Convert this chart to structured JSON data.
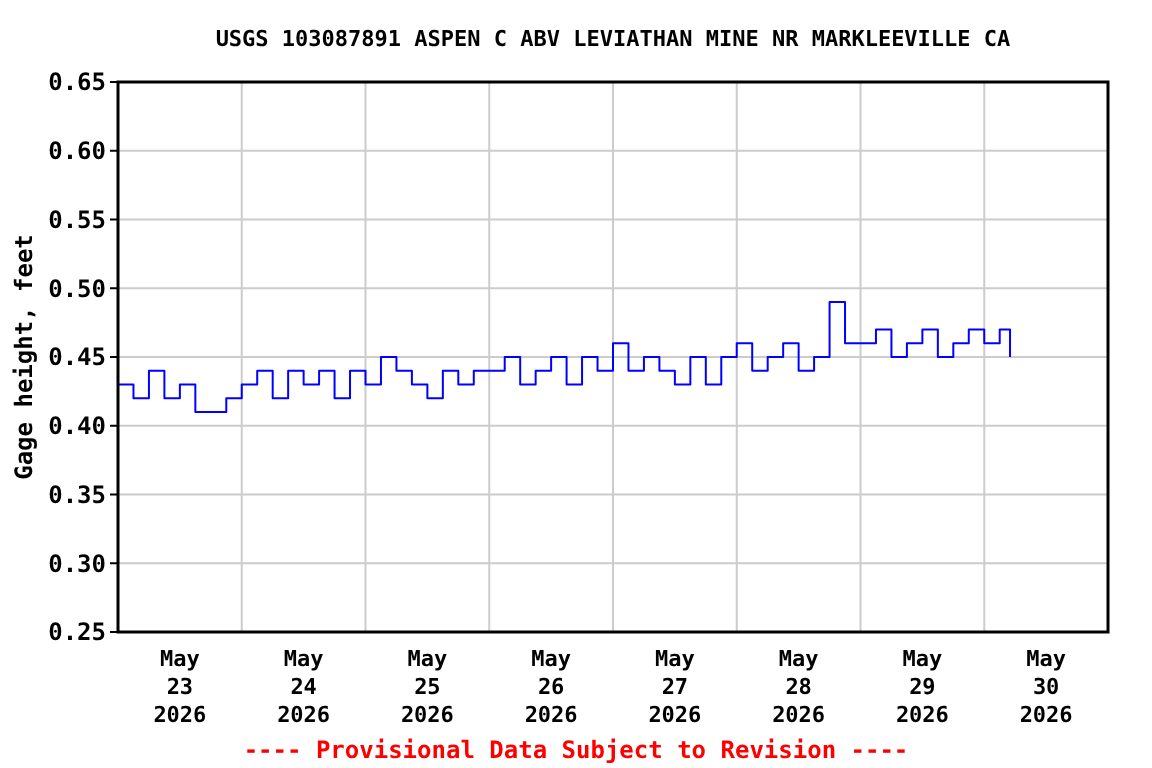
{
  "chart_data": {
    "type": "step",
    "title": "USGS 103087891 ASPEN C ABV LEVIATHAN MINE NR MARKLEEVILLE CA",
    "ylabel": "Gage height, feet",
    "annotations": [
      "---- Provisional Data Subject to Revision ----"
    ],
    "x": [
      "2026-05-23T00:00",
      "2026-05-23T03:00",
      "2026-05-23T06:00",
      "2026-05-23T09:00",
      "2026-05-23T12:00",
      "2026-05-23T15:00",
      "2026-05-23T18:00",
      "2026-05-23T21:00",
      "2026-05-24T00:00",
      "2026-05-24T03:00",
      "2026-05-24T06:00",
      "2026-05-24T09:00",
      "2026-05-24T12:00",
      "2026-05-24T15:00",
      "2026-05-24T18:00",
      "2026-05-24T21:00",
      "2026-05-25T00:00",
      "2026-05-25T03:00",
      "2026-05-25T06:00",
      "2026-05-25T09:00",
      "2026-05-25T12:00",
      "2026-05-25T15:00",
      "2026-05-25T18:00",
      "2026-05-25T21:00",
      "2026-05-26T00:00",
      "2026-05-26T03:00",
      "2026-05-26T06:00",
      "2026-05-26T09:00",
      "2026-05-26T12:00",
      "2026-05-26T15:00",
      "2026-05-26T18:00",
      "2026-05-26T21:00",
      "2026-05-27T00:00",
      "2026-05-27T03:00",
      "2026-05-27T06:00",
      "2026-05-27T09:00",
      "2026-05-27T12:00",
      "2026-05-27T15:00",
      "2026-05-27T18:00",
      "2026-05-27T21:00",
      "2026-05-28T00:00",
      "2026-05-28T03:00",
      "2026-05-28T06:00",
      "2026-05-28T09:00",
      "2026-05-28T12:00",
      "2026-05-28T15:00",
      "2026-05-28T18:00",
      "2026-05-28T21:00",
      "2026-05-29T00:00",
      "2026-05-29T03:00",
      "2026-05-29T06:00",
      "2026-05-29T09:00",
      "2026-05-29T12:00",
      "2026-05-29T15:00",
      "2026-05-29T18:00",
      "2026-05-29T21:00",
      "2026-05-30T00:00",
      "2026-05-30T03:00",
      "2026-05-30T05:00"
    ],
    "series": [
      {
        "color": "#0000ff",
        "values": [
          0.43,
          0.42,
          0.44,
          0.42,
          0.43,
          0.41,
          0.41,
          0.42,
          0.43,
          0.44,
          0.42,
          0.44,
          0.43,
          0.44,
          0.42,
          0.44,
          0.43,
          0.45,
          0.44,
          0.43,
          0.42,
          0.44,
          0.43,
          0.44,
          0.44,
          0.45,
          0.43,
          0.44,
          0.45,
          0.43,
          0.45,
          0.44,
          0.46,
          0.44,
          0.45,
          0.44,
          0.43,
          0.45,
          0.43,
          0.45,
          0.46,
          0.44,
          0.45,
          0.46,
          0.44,
          0.45,
          0.49,
          0.46,
          0.46,
          0.47,
          0.45,
          0.46,
          0.47,
          0.45,
          0.46,
          0.47,
          0.46,
          0.47,
          0.45
        ]
      }
    ],
    "xlim": [
      "2026-05-23T00:00",
      "2026-05-31T00:00"
    ],
    "xticks": [
      {
        "value": "2026-05-23T12:00",
        "label": "May\n23\n2026"
      },
      {
        "value": "2026-05-24T12:00",
        "label": "May\n24\n2026"
      },
      {
        "value": "2026-05-25T12:00",
        "label": "May\n25\n2026"
      },
      {
        "value": "2026-05-26T12:00",
        "label": "May\n26\n2026"
      },
      {
        "value": "2026-05-27T12:00",
        "label": "May\n27\n2026"
      },
      {
        "value": "2026-05-28T12:00",
        "label": "May\n28\n2026"
      },
      {
        "value": "2026-05-29T12:00",
        "label": "May\n29\n2026"
      },
      {
        "value": "2026-05-30T12:00",
        "label": "May\n30\n2026"
      }
    ],
    "ylim": [
      0.25,
      0.65
    ],
    "yticks": [
      {
        "value": 0.25,
        "label": "0.25"
      },
      {
        "value": 0.3,
        "label": "0.30"
      },
      {
        "value": 0.35,
        "label": "0.35"
      },
      {
        "value": 0.4,
        "label": "0.40"
      },
      {
        "value": 0.45,
        "label": "0.45"
      },
      {
        "value": 0.5,
        "label": "0.50"
      },
      {
        "value": 0.55,
        "label": "0.55"
      },
      {
        "value": 0.6,
        "label": "0.60"
      },
      {
        "value": 0.65,
        "label": "0.65"
      }
    ],
    "grid": true,
    "line_style": "solid"
  }
}
